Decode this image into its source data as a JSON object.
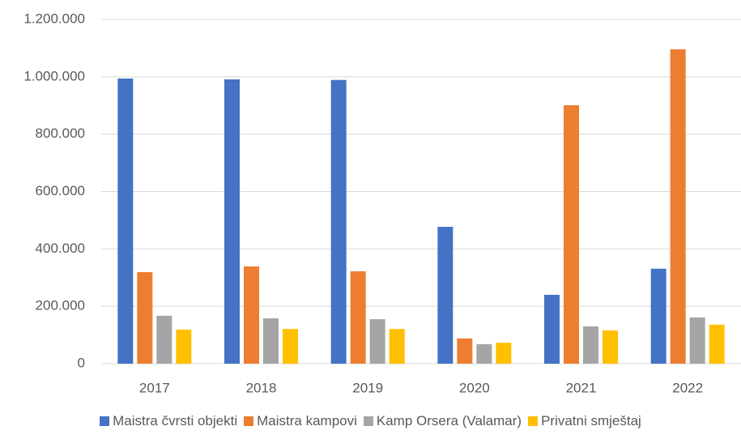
{
  "chart_data": {
    "type": "bar",
    "categories": [
      "2017",
      "2018",
      "2019",
      "2020",
      "2021",
      "2022"
    ],
    "series": [
      {
        "name": "Maistra čvrsti objekti",
        "color": "#4472c4",
        "values": [
          994000,
          991000,
          989000,
          477000,
          240000,
          331000
        ]
      },
      {
        "name": "Maistra kampovi",
        "color": "#ed7d31",
        "values": [
          319000,
          339000,
          322000,
          88000,
          901000,
          1096000
        ]
      },
      {
        "name": "Kamp Orsera (Valamar)",
        "color": "#a5a5a5",
        "values": [
          167000,
          158000,
          155000,
          68000,
          130000,
          161000
        ]
      },
      {
        "name": "Privatni smještaj",
        "color": "#ffc000",
        "values": [
          119000,
          121000,
          121000,
          73000,
          116000,
          136000
        ]
      }
    ],
    "ylim": [
      0,
      1200000
    ],
    "yticks": [
      0,
      {
        "value": 200000,
        "label": "200.000"
      },
      {
        "value": 400000,
        "label": "400.000"
      },
      {
        "value": 600000,
        "label": "600.000"
      },
      {
        "value": 800000,
        "label": "800.000"
      },
      {
        "value": 1000000,
        "label": "1.000.000"
      },
      {
        "value": 1200000,
        "label": "1.200.000"
      }
    ],
    "grid": true,
    "legend": "bottom"
  }
}
